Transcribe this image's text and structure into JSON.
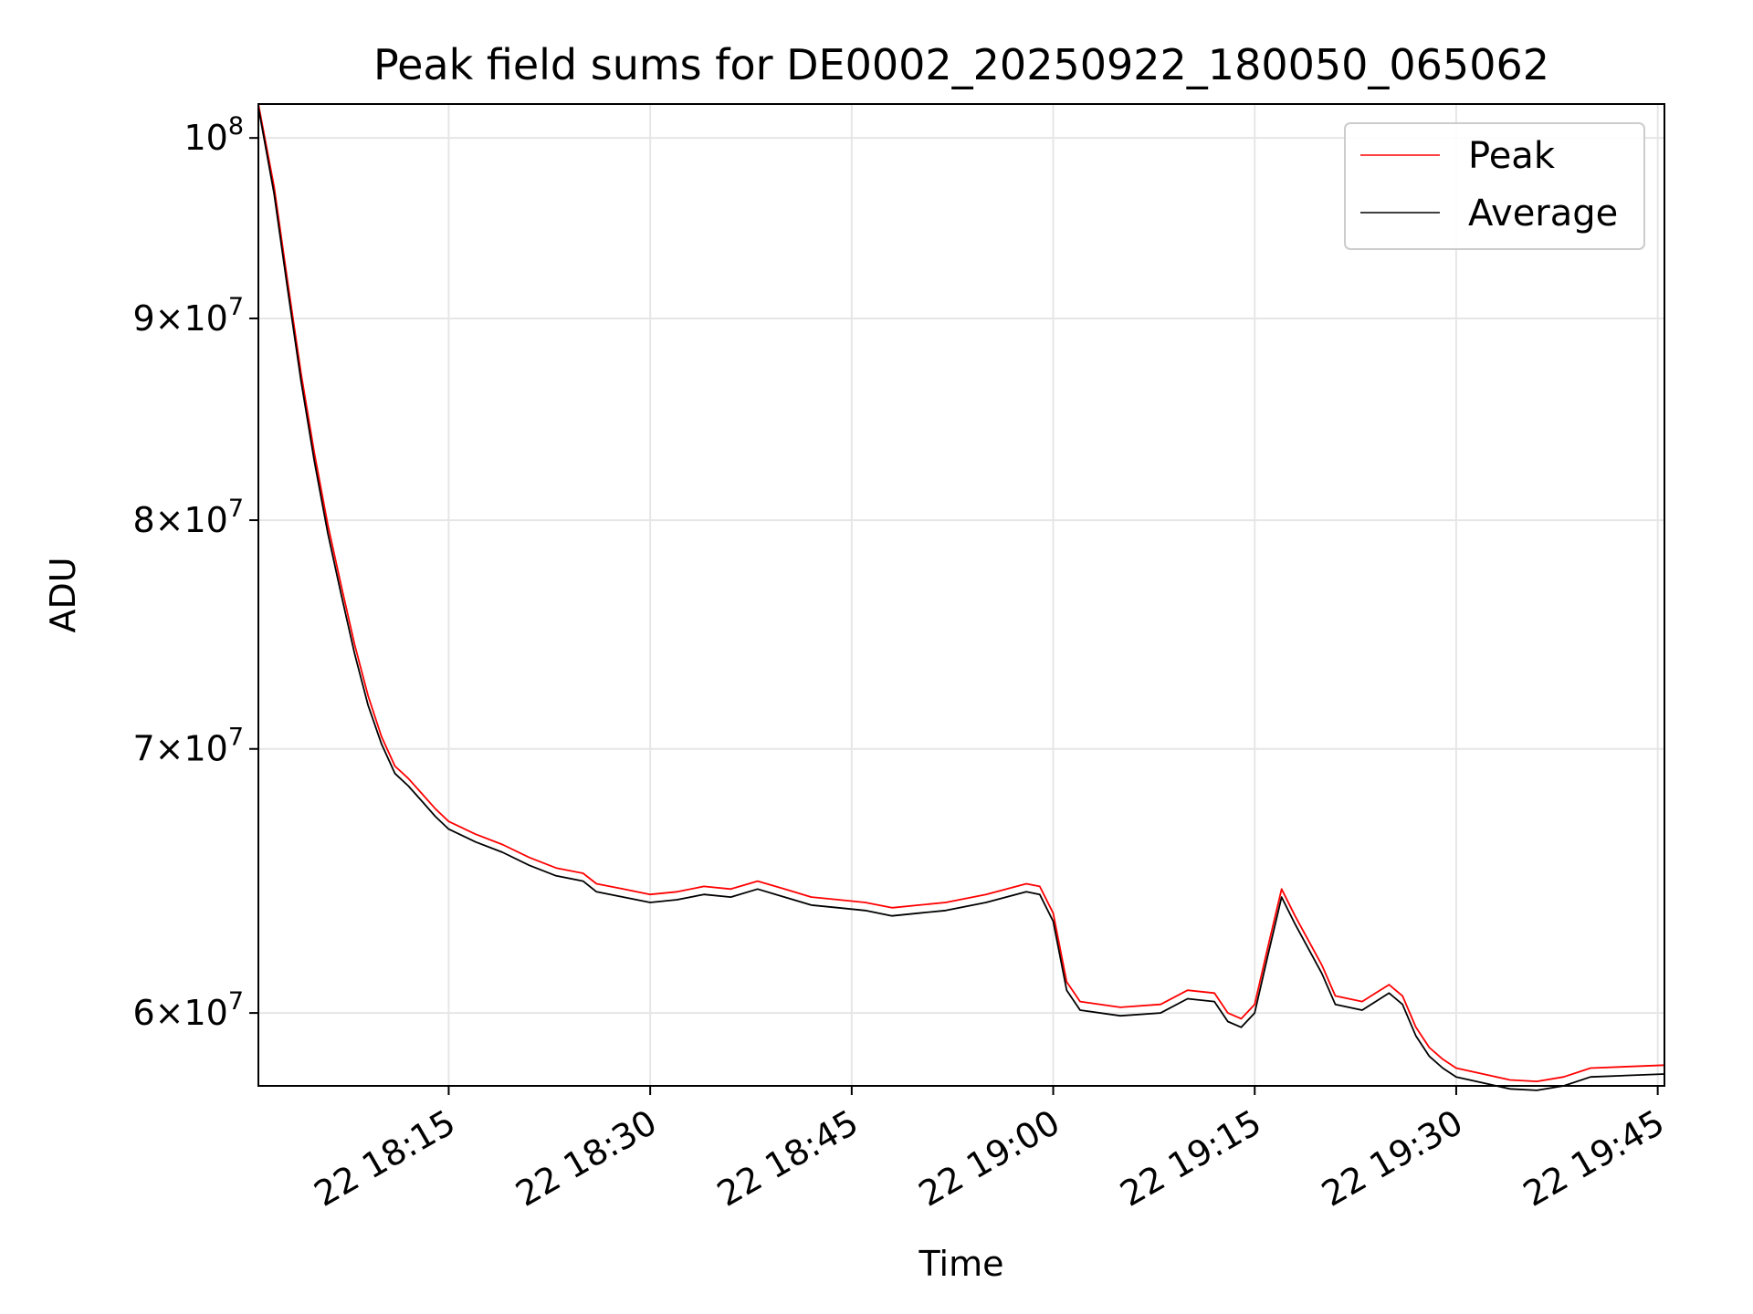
{
  "chart_data": {
    "type": "line",
    "title": "Peak field sums for DE0002_20250922_180050_065062",
    "xlabel": "Time",
    "ylabel": "ADU",
    "y_scale": "log",
    "xlim": [
      "2025-09-22 18:00:50",
      "2025-09-22 19:45:30"
    ],
    "ylim": [
      57500000,
      102000000
    ],
    "x_ticks": [
      "22 18:15",
      "22 18:30",
      "22 18:45",
      "22 19:00",
      "22 19:15",
      "22 19:30",
      "22 19:45"
    ],
    "x_tick_times": [
      "2025-09-22 18:15",
      "2025-09-22 18:30",
      "2025-09-22 18:45",
      "2025-09-22 19:00",
      "2025-09-22 19:15",
      "2025-09-22 19:30",
      "2025-09-22 19:45"
    ],
    "y_ticks": [
      {
        "value": 60000000,
        "mantissa": "6",
        "exponent": "7"
      },
      {
        "value": 70000000,
        "mantissa": "7",
        "exponent": "7"
      },
      {
        "value": 80000000,
        "mantissa": "8",
        "exponent": "7"
      },
      {
        "value": 90000000,
        "mantissa": "9",
        "exponent": "7"
      },
      {
        "value": 100000000,
        "mantissa": "",
        "exponent": "8"
      }
    ],
    "grid": true,
    "legend_position": "top-right",
    "series": [
      {
        "name": "Peak",
        "color": "#ff0000"
      },
      {
        "name": "Average",
        "color": "#000000"
      }
    ],
    "x": [
      "2025-09-22 18:00:50",
      "2025-09-22 18:02",
      "2025-09-22 18:03",
      "2025-09-22 18:04",
      "2025-09-22 18:05",
      "2025-09-22 18:06",
      "2025-09-22 18:07",
      "2025-09-22 18:08",
      "2025-09-22 18:09",
      "2025-09-22 18:10",
      "2025-09-22 18:11",
      "2025-09-22 18:12",
      "2025-09-22 18:13",
      "2025-09-22 18:14",
      "2025-09-22 18:15",
      "2025-09-22 18:17",
      "2025-09-22 18:19",
      "2025-09-22 18:21",
      "2025-09-22 18:23",
      "2025-09-22 18:25",
      "2025-09-22 18:26",
      "2025-09-22 18:28",
      "2025-09-22 18:30",
      "2025-09-22 18:32",
      "2025-09-22 18:34",
      "2025-09-22 18:36",
      "2025-09-22 18:38",
      "2025-09-22 18:40",
      "2025-09-22 18:42",
      "2025-09-22 18:44",
      "2025-09-22 18:46",
      "2025-09-22 18:48",
      "2025-09-22 18:50",
      "2025-09-22 18:52",
      "2025-09-22 18:55",
      "2025-09-22 18:58",
      "2025-09-22 18:59",
      "2025-09-22 19:00",
      "2025-09-22 19:01",
      "2025-09-22 19:02",
      "2025-09-22 19:05",
      "2025-09-22 19:08",
      "2025-09-22 19:10",
      "2025-09-22 19:12",
      "2025-09-22 19:13",
      "2025-09-22 19:14",
      "2025-09-22 19:15",
      "2025-09-22 19:16",
      "2025-09-22 19:17",
      "2025-09-22 19:18",
      "2025-09-22 19:20",
      "2025-09-22 19:21",
      "2025-09-22 19:23",
      "2025-09-22 19:24",
      "2025-09-22 19:25",
      "2025-09-22 19:26",
      "2025-09-22 19:27",
      "2025-09-22 19:28",
      "2025-09-22 19:29",
      "2025-09-22 19:30",
      "2025-09-22 19:32",
      "2025-09-22 19:34",
      "2025-09-22 19:36",
      "2025-09-22 19:38",
      "2025-09-22 19:40",
      "2025-09-22 19:45:30"
    ],
    "peak": [
      102000000,
      97200000,
      92000000,
      87200000,
      83200000,
      79800000,
      77000000,
      74400000,
      72200000,
      70500000,
      69300000,
      68800000,
      68200000,
      67600000,
      67100000,
      66600000,
      66200000,
      65700000,
      65300000,
      65100000,
      64700000,
      64500000,
      64300000,
      64400000,
      64600000,
      64500000,
      64800000,
      64500000,
      64200000,
      64100000,
      64000000,
      63800000,
      63900000,
      64000000,
      64300000,
      64700000,
      64600000,
      63600000,
      61100000,
      60400000,
      60200000,
      60300000,
      60800000,
      60700000,
      60000000,
      59800000,
      60300000,
      62400000,
      64500000,
      63500000,
      61700000,
      60600000,
      60400000,
      60700000,
      61000000,
      60600000,
      59500000,
      58800000,
      58400000,
      58100000,
      57900000,
      57700000,
      57650000,
      57800000,
      58100000,
      58200000
    ],
    "average": [
      101800000,
      96800000,
      91600000,
      86800000,
      82800000,
      79400000,
      76600000,
      74000000,
      71800000,
      70200000,
      69000000,
      68500000,
      67900000,
      67300000,
      66800000,
      66300000,
      65900000,
      65400000,
      65000000,
      64800000,
      64400000,
      64200000,
      64000000,
      64100000,
      64300000,
      64200000,
      64500000,
      64200000,
      63900000,
      63800000,
      63700000,
      63500000,
      63600000,
      63700000,
      64000000,
      64400000,
      64300000,
      63300000,
      60800000,
      60100000,
      59900000,
      60000000,
      60500000,
      60400000,
      59700000,
      59500000,
      60000000,
      62100000,
      64200000,
      63200000,
      61400000,
      60300000,
      60100000,
      60400000,
      60700000,
      60300000,
      59200000,
      58500000,
      58100000,
      57800000,
      57600000,
      57400000,
      57350000,
      57500000,
      57800000,
      57900000
    ]
  }
}
